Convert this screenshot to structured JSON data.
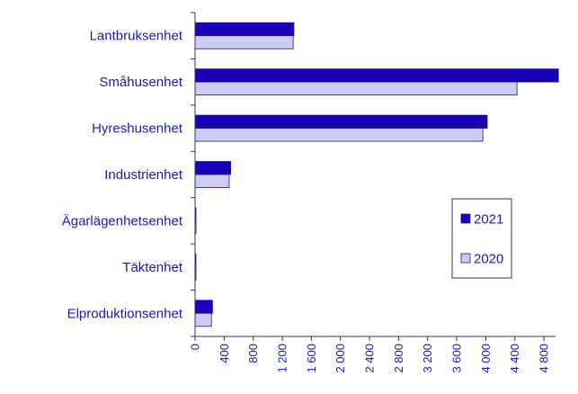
{
  "chart_data": {
    "type": "bar",
    "orientation": "horizontal",
    "categories": [
      "Lantbruksenhet",
      "Småhusenhet",
      "Hyreshusenhet",
      "Industrienhet",
      "Ägarlägenhetsenhet",
      "Täktenhet",
      "Elproduktionsenhet"
    ],
    "series": [
      {
        "name": "2021",
        "values": [
          1360,
          5000,
          4020,
          490,
          12,
          8,
          240
        ],
        "color": "#1a00b8"
      },
      {
        "name": "2020",
        "values": [
          1350,
          4430,
          3960,
          470,
          10,
          6,
          225
        ],
        "color": "#ccccf5"
      }
    ],
    "xlim": [
      0,
      4960
    ],
    "xticks": [
      0,
      400,
      800,
      1200,
      1600,
      2000,
      2400,
      2800,
      3200,
      3600,
      4000,
      4400,
      4800
    ],
    "xtick_labels": [
      "0",
      "400",
      "800",
      "1 200",
      "1 600",
      "2 000",
      "2 400",
      "2 800",
      "3 200",
      "3 600",
      "4 000",
      "4 400",
      "4 800"
    ],
    "legend_placement": "right-center",
    "grid": false
  }
}
